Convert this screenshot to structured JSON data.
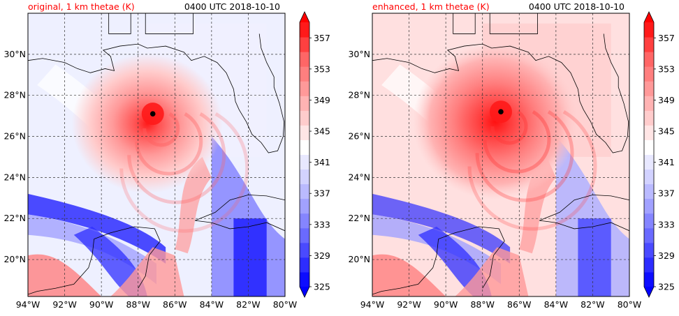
{
  "panels": [
    {
      "title": "original, 1 km thetae (K)",
      "time": "0400 UTC 2018-10-10",
      "center_dot": {
        "lon": -87.2,
        "lat": 27.1
      },
      "style": "original"
    },
    {
      "title": "enhanced, 1 km thetae (K)",
      "time": "0400 UTC 2018-10-10",
      "center_dot": {
        "lon": -87.0,
        "lat": 27.2
      },
      "style": "enhanced"
    }
  ],
  "axes": {
    "x_ticks": [
      "94°W",
      "92°W",
      "90°W",
      "88°W",
      "86°W",
      "84°W",
      "82°W",
      "80°W"
    ],
    "y_ticks": [
      "20°N",
      "22°N",
      "24°N",
      "26°N",
      "28°N",
      "30°N"
    ],
    "lon_range": [
      -94,
      -80
    ],
    "lat_range": [
      18.2,
      32
    ]
  },
  "colorbar": {
    "labels": [
      "357",
      "353",
      "349",
      "345",
      "341",
      "337",
      "333",
      "329",
      "325"
    ],
    "levels": [
      325,
      327,
      329,
      331,
      333,
      335,
      337,
      339,
      341,
      343,
      345,
      347,
      349,
      351,
      353,
      355,
      357,
      359
    ],
    "colors_low_to_high": [
      "#0d0dff",
      "#2d2dff",
      "#4a4aff",
      "#6a6aff",
      "#8585ff",
      "#a1a1ff",
      "#babaff",
      "#d2d2ff",
      "#e8e8ff",
      "#ffffff",
      "#ffe5e5",
      "#ffcccc",
      "#ffb3b3",
      "#ff9999",
      "#ff7f7f",
      "#ff6666",
      "#ff4040",
      "#ff1a1a"
    ]
  }
}
